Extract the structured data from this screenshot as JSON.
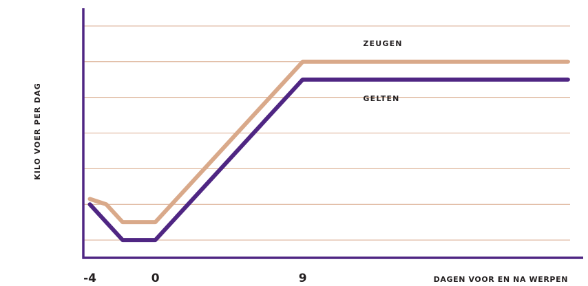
{
  "chart_data": {
    "type": "line",
    "ylabel": "KILO VOER PER DAG",
    "xlabel": "DAGEN VOOR EN NA WERPEN",
    "x_ticks": [
      {
        "value": -4,
        "label": "-4"
      },
      {
        "value": 0,
        "label": "0"
      },
      {
        "value": 9,
        "label": "9"
      }
    ],
    "xlim": [
      -4.4,
      25.5
    ],
    "ylim": [
      0,
      7
    ],
    "grid": true,
    "colors": {
      "axis": "#4f2683",
      "grid": "#d8a88a",
      "zeugen": "#d9a98a",
      "gelten": "#4f2683"
    },
    "series": [
      {
        "name": "ZEUGEN",
        "color": "#d9a98a",
        "points": [
          [
            -4,
            1.65
          ],
          [
            -3,
            1.5
          ],
          [
            -2,
            1.0
          ],
          [
            0,
            1.0
          ],
          [
            9,
            5.5
          ],
          [
            25.2,
            5.5
          ]
        ]
      },
      {
        "name": "GELTEN",
        "color": "#4f2683",
        "points": [
          [
            -4,
            1.5
          ],
          [
            -2,
            0.5
          ],
          [
            0,
            0.5
          ],
          [
            9,
            5.0
          ],
          [
            25.2,
            5.0
          ]
        ]
      }
    ]
  }
}
